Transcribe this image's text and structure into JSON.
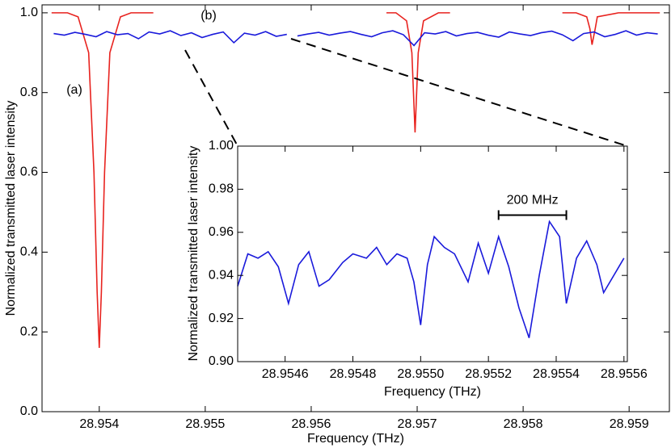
{
  "chart_data": [
    {
      "type": "line",
      "x_label": "Frequency (THz)",
      "y_label": "Normalized transmitted laser intensity",
      "xlim": [
        28.95346,
        28.95938
      ],
      "ylim": [
        0,
        1.02
      ],
      "xticks": [
        28.954,
        28.955,
        28.956,
        28.957,
        28.958,
        28.959
      ],
      "yticks": [
        {
          "value": 0,
          "label": "0.0"
        },
        0.2,
        0.4,
        0.6,
        0.8,
        {
          "value": 1,
          "label": "1.0"
        }
      ],
      "annotations": [
        "(a)",
        "(b)"
      ],
      "series": [
        {
          "color": "#e8231f",
          "x": [
            28.95355,
            28.9537,
            28.9538,
            28.9539,
            28.95395,
            28.95398,
            28.954,
            28.95402,
            28.95405,
            28.9541,
            28.9542,
            28.9543,
            28.95451,
            28.9556,
            28.95671,
            28.9568,
            28.9569,
            28.95695,
            28.95698,
            28.95701,
            28.95706,
            28.9572,
            28.95731,
            28.958,
            28.95837,
            28.9585,
            28.9586,
            28.95863,
            28.95865,
            28.95868,
            28.9587,
            28.9589,
            28.95929
          ],
          "values": [
            1.0,
            1.0,
            0.99,
            0.9,
            0.6,
            0.3,
            0.16,
            0.3,
            0.6,
            0.9,
            0.99,
            1.0,
            1.0,
            null,
            1.0,
            1.0,
            0.98,
            0.9,
            0.7,
            0.9,
            0.98,
            1.0,
            1.0,
            null,
            1.0,
            1.0,
            0.99,
            0.96,
            0.92,
            0.96,
            0.99,
            1.0,
            1.0
          ]
        },
        {
          "color": "#1a1adb",
          "x": [
            28.95357,
            28.95367,
            28.95377,
            28.95387,
            28.95397,
            28.95407,
            28.95417,
            28.95427,
            28.95437,
            28.95447,
            28.95457,
            28.95467,
            28.95477,
            28.95487,
            28.95497,
            28.95507,
            28.95517,
            28.95527,
            28.95537,
            28.95547,
            28.95557,
            28.95567,
            28.95577,
            28.95582,
            28.95587,
            28.95597,
            28.95607,
            28.95617,
            28.95627,
            28.95637,
            28.95647,
            28.95657,
            28.95667,
            28.95677,
            28.95687,
            28.95697,
            28.95707,
            28.95717,
            28.95727,
            28.95737,
            28.95747,
            28.95757,
            28.95767,
            28.95777,
            28.95787,
            28.95797,
            28.95807,
            28.95817,
            28.95827,
            28.95837,
            28.95847,
            28.95857,
            28.95867,
            28.95877,
            28.95887,
            28.95897,
            28.95907,
            28.95917,
            28.95927
          ],
          "values": [
            0.948,
            0.944,
            0.951,
            0.946,
            0.94,
            0.953,
            0.945,
            0.948,
            0.935,
            0.952,
            0.947,
            0.955,
            0.943,
            0.95,
            0.938,
            0.946,
            0.952,
            0.925,
            0.949,
            0.944,
            0.953,
            0.941,
            0.946,
            null,
            0.942,
            0.947,
            0.951,
            0.944,
            0.949,
            0.953,
            0.946,
            0.94,
            0.95,
            0.955,
            0.945,
            0.918,
            0.95,
            0.947,
            0.953,
            0.942,
            0.948,
            0.951,
            0.944,
            0.939,
            0.952,
            0.947,
            0.943,
            0.95,
            0.954,
            0.945,
            0.93,
            0.948,
            0.952,
            0.94,
            0.946,
            0.955,
            0.944,
            0.95,
            0.947
          ]
        }
      ]
    },
    {
      "type": "line",
      "x_label": "Frequency (THz)",
      "y_label": "Normalized transmitted laser intensity",
      "xlim": [
        28.95446,
        28.95561
      ],
      "ylim": [
        0.9,
        1.0
      ],
      "xticks": [
        28.9546,
        28.9548,
        {
          "value": 28.955,
          "label": "28.9550"
        },
        28.9552,
        28.9554,
        28.9556
      ],
      "yticks": [
        {
          "value": 0.9,
          "label": "0.90"
        },
        0.92,
        0.94,
        0.96,
        0.98,
        {
          "value": 1,
          "label": "1.00"
        }
      ],
      "scale_bar": {
        "label": "200 MHz",
        "x": [
          28.95523,
          28.95543
        ],
        "y": 0.968
      },
      "series": [
        {
          "color": "#1a1adb",
          "x": [
            28.95446,
            28.95449,
            28.95452,
            28.95455,
            28.95458,
            28.95461,
            28.95464,
            28.95467,
            28.9547,
            28.95473,
            28.95477,
            28.9548,
            28.95484,
            28.95487,
            28.9549,
            28.95493,
            28.95496,
            28.95498,
            28.955,
            28.95502,
            28.95504,
            28.95507,
            28.9551,
            28.95514,
            28.95517,
            28.9552,
            28.95523,
            28.95526,
            28.95529,
            28.95532,
            28.95535,
            28.95538,
            28.95541,
            28.95543,
            28.95546,
            28.95549,
            28.95552,
            28.95554,
            28.9556
          ],
          "values": [
            0.935,
            0.95,
            0.948,
            0.951,
            0.944,
            0.927,
            0.945,
            0.951,
            0.935,
            0.938,
            0.946,
            0.95,
            0.948,
            0.953,
            0.945,
            0.95,
            0.948,
            0.937,
            0.917,
            0.945,
            0.958,
            0.953,
            0.95,
            0.937,
            0.955,
            0.941,
            0.958,
            0.944,
            0.925,
            0.911,
            0.94,
            0.965,
            0.958,
            0.927,
            0.948,
            0.956,
            0.945,
            0.932,
            0.948
          ]
        }
      ]
    }
  ]
}
